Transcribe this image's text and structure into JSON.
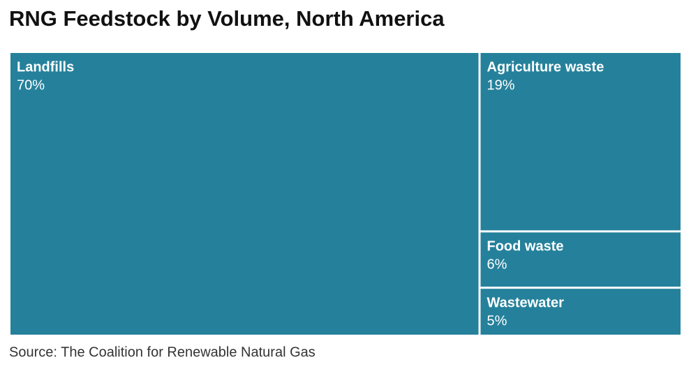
{
  "chart_data": {
    "type": "treemap",
    "title": "RNG Feedstock by Volume, North America",
    "categories": [
      "Landfills",
      "Agriculture waste",
      "Food waste",
      "Wastewater"
    ],
    "values": [
      70,
      19,
      6,
      5
    ],
    "value_labels": [
      "70%",
      "19%",
      "6%",
      "5%"
    ],
    "color": "#25819b",
    "source": "Source: The Coalition for Renewable Natural Gas"
  }
}
